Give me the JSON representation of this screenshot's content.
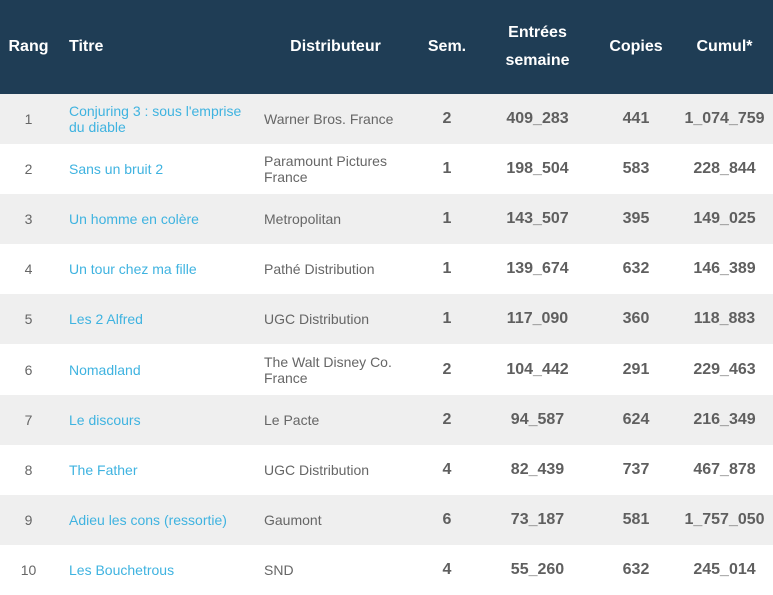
{
  "headers": {
    "rang": "Rang",
    "titre": "Titre",
    "distributeur": "Distributeur",
    "sem": "Sem.",
    "entrees_line1": "Entrées",
    "entrees_line2": "semaine",
    "copies": "Copies",
    "cumul": "Cumul*"
  },
  "rows": [
    {
      "rang": "1",
      "titre": "Conjuring 3 : sous l'emprise du diable",
      "distributeur": "Warner Bros. France",
      "sem": "2",
      "entrees": "409_283",
      "copies": "441",
      "cumul": "1_074_759"
    },
    {
      "rang": "2",
      "titre": "Sans un bruit 2",
      "distributeur": "Paramount Pictures France",
      "sem": "1",
      "entrees": "198_504",
      "copies": "583",
      "cumul": "228_844"
    },
    {
      "rang": "3",
      "titre": "Un homme en colère",
      "distributeur": "Metropolitan",
      "sem": "1",
      "entrees": "143_507",
      "copies": "395",
      "cumul": "149_025"
    },
    {
      "rang": "4",
      "titre": "Un tour chez ma fille",
      "distributeur": "Pathé Distribution",
      "sem": "1",
      "entrees": "139_674",
      "copies": "632",
      "cumul": "146_389"
    },
    {
      "rang": "5",
      "titre": "Les 2 Alfred",
      "distributeur": "UGC Distribution",
      "sem": "1",
      "entrees": "117_090",
      "copies": "360",
      "cumul": "118_883"
    },
    {
      "rang": "6",
      "titre": "Nomadland",
      "distributeur": "The Walt Disney Co. France",
      "sem": "2",
      "entrees": "104_442",
      "copies": "291",
      "cumul": "229_463"
    },
    {
      "rang": "7",
      "titre": "Le discours",
      "distributeur": "Le Pacte",
      "sem": "2",
      "entrees": "94_587",
      "copies": "624",
      "cumul": "216_349"
    },
    {
      "rang": "8",
      "titre": "The Father",
      "distributeur": "UGC Distribution",
      "sem": "4",
      "entrees": "82_439",
      "copies": "737",
      "cumul": "467_878"
    },
    {
      "rang": "9",
      "titre": "Adieu les cons (ressortie)",
      "distributeur": "Gaumont",
      "sem": "6",
      "entrees": "73_187",
      "copies": "581",
      "cumul": "1_757_050"
    },
    {
      "rang": "10",
      "titre": "Les Bouchetrous",
      "distributeur": "SND",
      "sem": "4",
      "entrees": "55_260",
      "copies": "632",
      "cumul": "245_014"
    }
  ],
  "colors": {
    "header_bg": "#1f3d55",
    "link": "#3fb3e0",
    "row_alt": "#efefef"
  }
}
